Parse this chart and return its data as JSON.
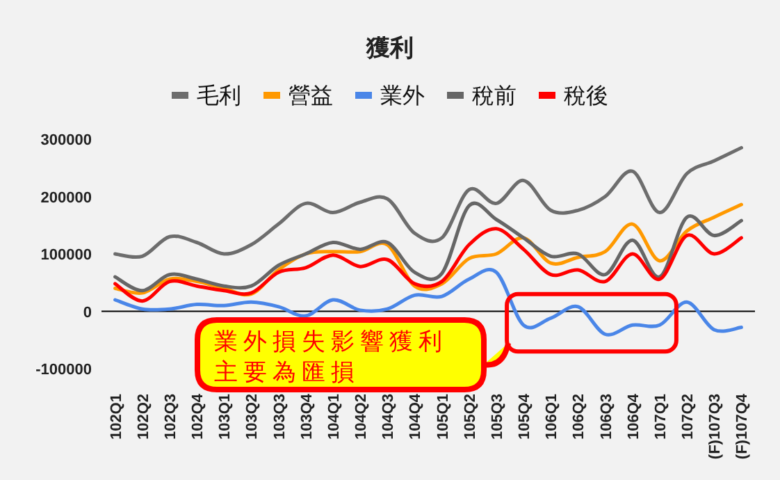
{
  "chart_data": {
    "type": "line",
    "title": "獲利",
    "categories": [
      "102Q1",
      "102Q2",
      "102Q3",
      "102Q4",
      "103Q1",
      "103Q2",
      "103Q3",
      "103Q4",
      "104Q1",
      "104Q2",
      "104Q3",
      "104Q4",
      "105Q1",
      "105Q2",
      "105Q3",
      "105Q4",
      "106Q1",
      "106Q2",
      "106Q3",
      "106Q4",
      "107Q1",
      "107Q2",
      "(F)107Q3",
      "(F)107Q4"
    ],
    "series": [
      {
        "name": "毛利",
        "color": "#6d6d6d",
        "values": [
          100000,
          96000,
          130000,
          120000,
          100000,
          116000,
          152000,
          188000,
          172000,
          190000,
          196000,
          136000,
          128000,
          212000,
          188000,
          228000,
          176000,
          176000,
          200000,
          244000,
          172000,
          240000,
          262000,
          285000
        ]
      },
      {
        "name": "營益",
        "color": "#ff9900",
        "values": [
          40000,
          32000,
          56000,
          52000,
          40000,
          30000,
          72000,
          100000,
          104000,
          104000,
          116000,
          44000,
          48000,
          92000,
          100000,
          128000,
          84000,
          94000,
          104000,
          152000,
          88000,
          140000,
          164000,
          186000
        ]
      },
      {
        "name": "業外",
        "color": "#4a86e8",
        "values": [
          20000,
          4000,
          4000,
          12000,
          10000,
          16000,
          8000,
          -8000,
          20000,
          2000,
          4000,
          28000,
          26000,
          56000,
          68000,
          -24000,
          -12000,
          8000,
          -40000,
          -24000,
          -24000,
          16000,
          -32000,
          -28000
        ]
      },
      {
        "name": "稅前",
        "color": "#666666",
        "values": [
          60000,
          36000,
          64000,
          56000,
          44000,
          44000,
          80000,
          100000,
          120000,
          108000,
          120000,
          68000,
          66000,
          184000,
          160000,
          128000,
          96000,
          100000,
          64000,
          124000,
          60000,
          164000,
          132000,
          158000
        ]
      },
      {
        "name": "稅後",
        "color": "#ff0000",
        "values": [
          48000,
          18000,
          52000,
          44000,
          36000,
          32000,
          68000,
          76000,
          98000,
          78000,
          90000,
          48000,
          52000,
          116000,
          144000,
          108000,
          64000,
          72000,
          52000,
          100000,
          56000,
          132000,
          100000,
          128000
        ]
      }
    ],
    "ylim": [
      -100000,
      300000
    ],
    "yticks": [
      -100000,
      0,
      100000,
      200000,
      300000
    ],
    "legend": "top",
    "marker": "none",
    "line_style": "solid",
    "annotations": [
      "業外損失影響獲利",
      "主要為匯損"
    ]
  }
}
